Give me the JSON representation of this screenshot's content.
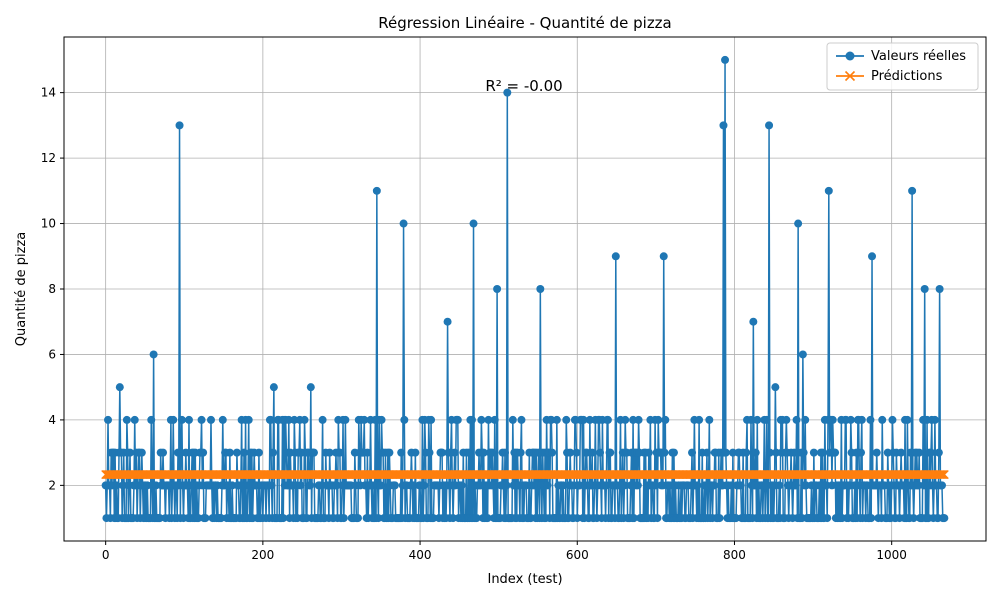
{
  "chart_data": {
    "type": "line",
    "title": "Régression Linéaire - Quantité de pizza",
    "xlabel": "Index (test)",
    "ylabel": "Quantité de pizza",
    "xlim": [
      -53,
      1120
    ],
    "ylim": [
      0.3,
      15.7
    ],
    "xticks": [
      0,
      200,
      400,
      600,
      800,
      1000
    ],
    "yticks": [
      2,
      4,
      6,
      8,
      10,
      12,
      14
    ],
    "grid": true,
    "legend_position": "top-right",
    "annotation": "R² = -0.00",
    "n_points": 1068,
    "highlights": [
      {
        "x": 18,
        "y": 5
      },
      {
        "x": 61,
        "y": 6
      },
      {
        "x": 94,
        "y": 13
      },
      {
        "x": 214,
        "y": 5
      },
      {
        "x": 261,
        "y": 5
      },
      {
        "x": 345,
        "y": 11
      },
      {
        "x": 379,
        "y": 10
      },
      {
        "x": 435,
        "y": 7
      },
      {
        "x": 468,
        "y": 10
      },
      {
        "x": 498,
        "y": 8
      },
      {
        "x": 511,
        "y": 14
      },
      {
        "x": 553,
        "y": 8
      },
      {
        "x": 649,
        "y": 9
      },
      {
        "x": 710,
        "y": 9
      },
      {
        "x": 786,
        "y": 13
      },
      {
        "x": 788,
        "y": 15
      },
      {
        "x": 824,
        "y": 7
      },
      {
        "x": 844,
        "y": 13
      },
      {
        "x": 852,
        "y": 5
      },
      {
        "x": 881,
        "y": 10
      },
      {
        "x": 887,
        "y": 6
      },
      {
        "x": 920,
        "y": 11
      },
      {
        "x": 975,
        "y": 9
      },
      {
        "x": 1026,
        "y": 11
      },
      {
        "x": 1042,
        "y": 8
      },
      {
        "x": 1061,
        "y": 8
      }
    ],
    "series": [
      {
        "name": "Valeurs réelles",
        "color": "#1f77b4",
        "marker": "circle",
        "baseline_values": [
          1,
          2,
          3,
          4
        ]
      },
      {
        "name": "Prédictions",
        "color": "#ff7f0e",
        "marker": "x",
        "constant_value": 2.33
      }
    ]
  }
}
